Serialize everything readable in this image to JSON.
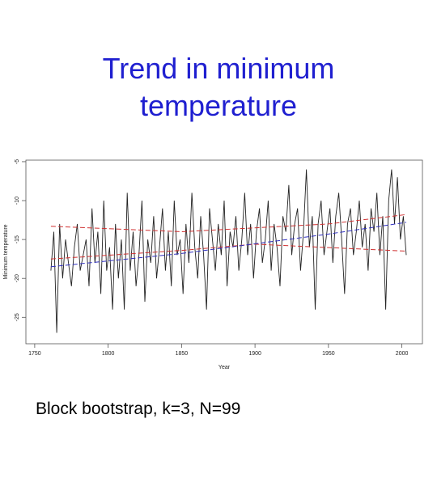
{
  "chart_data": {
    "type": "line",
    "title": "Trend in minimum temperature",
    "caption": "Block bootstrap, k=3, N=99",
    "x_label": "Year",
    "y_label": "Minimum temperature",
    "xlim": [
      1744,
      2014
    ],
    "xticks": [
      1750,
      1800,
      1850,
      1900,
      1950,
      2000
    ],
    "ylim": [
      -28.4,
      -4.8
    ],
    "yticks": [
      -5,
      -10,
      -15,
      -20,
      -25
    ],
    "series": [
      {
        "color": "#222222",
        "x": [
          1761,
          1763,
          1765,
          1767,
          1769,
          1771,
          1773,
          1775,
          1777,
          1779,
          1781,
          1783,
          1785,
          1787,
          1789,
          1791,
          1793,
          1795,
          1797,
          1799,
          1801,
          1803,
          1805,
          1807,
          1809,
          1811,
          1813,
          1815,
          1817,
          1819,
          1821,
          1823,
          1825,
          1827,
          1829,
          1831,
          1833,
          1835,
          1837,
          1839,
          1841,
          1843,
          1845,
          1847,
          1849,
          1851,
          1853,
          1855,
          1857,
          1859,
          1861,
          1863,
          1865,
          1867,
          1869,
          1871,
          1873,
          1875,
          1877,
          1879,
          1881,
          1883,
          1885,
          1887,
          1889,
          1891,
          1893,
          1895,
          1897,
          1899,
          1901,
          1903,
          1905,
          1907,
          1909,
          1911,
          1913,
          1915,
          1917,
          1919,
          1921,
          1923,
          1925,
          1927,
          1929,
          1931,
          1933,
          1935,
          1937,
          1939,
          1941,
          1943,
          1945,
          1947,
          1949,
          1951,
          1953,
          1955,
          1957,
          1959,
          1961,
          1963,
          1965,
          1967,
          1969,
          1971,
          1973,
          1975,
          1977,
          1979,
          1981,
          1983,
          1985,
          1987,
          1989,
          1991,
          1993,
          1995,
          1997,
          1999,
          2001,
          2003
        ],
        "values": [
          -19,
          -14,
          -27,
          -13,
          -20,
          -15,
          -18,
          -21,
          -16,
          -13,
          -19,
          -17,
          -15,
          -21,
          -11,
          -18,
          -14,
          -22,
          -10,
          -19,
          -16,
          -24,
          -13,
          -20,
          -15,
          -24,
          -9,
          -19,
          -14,
          -21,
          -17,
          -10,
          -23,
          -15,
          -18,
          -12,
          -20,
          -16,
          -11,
          -19,
          -14,
          -21,
          -10,
          -17,
          -15,
          -22,
          -13,
          -18,
          -9,
          -16,
          -20,
          -12,
          -17,
          -24,
          -11,
          -15,
          -19,
          -13,
          -17,
          -10,
          -21,
          -14,
          -16,
          -12,
          -19,
          -15,
          -9,
          -17,
          -13,
          -20,
          -14,
          -11,
          -18,
          -15,
          -10,
          -19,
          -13,
          -16,
          -21,
          -12,
          -14,
          -8,
          -17,
          -13,
          -11,
          -19,
          -14,
          -6,
          -16,
          -12,
          -24,
          -13,
          -10,
          -17,
          -14,
          -11,
          -18,
          -12,
          -9,
          -15,
          -22,
          -13,
          -11,
          -17,
          -14,
          -10,
          -16,
          -13,
          -19,
          -11,
          -14,
          -9,
          -17,
          -12,
          -24,
          -10,
          -6,
          -13,
          -7,
          -15,
          -12,
          -17
        ]
      },
      {
        "color": "#d03030",
        "x": [
          1761,
          1850,
          1950,
          2003
        ],
        "values": [
          -13.3,
          -14.0,
          -13.0,
          -11.8
        ]
      },
      {
        "color": "#d03030",
        "x": [
          1761,
          1850,
          1900,
          2003
        ],
        "values": [
          -17.5,
          -16.4,
          -15.6,
          -16.5
        ]
      },
      {
        "color": "#3030c0",
        "x": [
          1761,
          1850,
          1950,
          2003
        ],
        "values": [
          -18.5,
          -16.8,
          -14.3,
          -12.8
        ]
      }
    ]
  }
}
